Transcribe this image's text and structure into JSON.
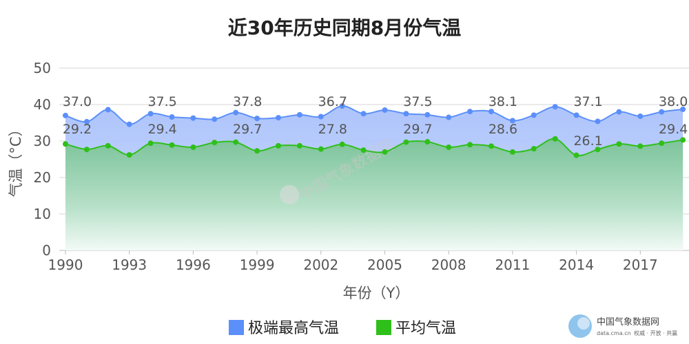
{
  "chart_data": {
    "type": "area",
    "title": "近30年历史同期8月份气温",
    "xlabel": "年份（Y）",
    "ylabel": "气温（°C）",
    "ylim": [
      0,
      50
    ],
    "yticks": [
      0,
      10,
      20,
      30,
      40,
      50
    ],
    "xticks": [
      1990,
      1993,
      1996,
      1999,
      2002,
      2005,
      2008,
      2011,
      2014,
      2017
    ],
    "x": [
      1990,
      1991,
      1992,
      1993,
      1994,
      1995,
      1996,
      1997,
      1998,
      1999,
      2000,
      2001,
      2002,
      2003,
      2004,
      2005,
      2006,
      2007,
      2008,
      2009,
      2010,
      2011,
      2012,
      2013,
      2014,
      2015,
      2016,
      2017,
      2018,
      2019
    ],
    "grid": true,
    "legend_position": "bottom",
    "series": [
      {
        "name": "极端最高气温",
        "color": "#5b8ff9",
        "fill": "#b9cdfb",
        "values": [
          37.0,
          35.3,
          38.6,
          34.6,
          37.5,
          36.6,
          36.3,
          36.0,
          37.8,
          36.2,
          36.4,
          37.2,
          36.7,
          39.6,
          37.5,
          38.5,
          37.5,
          37.2,
          36.5,
          38.1,
          38.1,
          35.6,
          37.1,
          39.4,
          37.1,
          35.4,
          38.0,
          36.8,
          38.0,
          38.7
        ]
      },
      {
        "name": "平均气温",
        "color": "#2fbf1a",
        "fill": "#8ecda8",
        "values": [
          29.2,
          27.7,
          28.7,
          26.2,
          29.4,
          28.9,
          28.3,
          29.6,
          29.7,
          27.3,
          28.7,
          28.7,
          27.8,
          29.1,
          27.5,
          27.0,
          29.7,
          29.8,
          28.3,
          29.0,
          28.6,
          27.0,
          27.9,
          30.6,
          26.1,
          27.7,
          29.2,
          28.6,
          29.4,
          30.3
        ]
      }
    ],
    "data_labels": {
      "highs": [
        {
          "year": 1990,
          "value": "37.0"
        },
        {
          "year": 1994,
          "value": "37.5"
        },
        {
          "year": 1998,
          "value": "37.8"
        },
        {
          "year": 2002,
          "value": "36.7"
        },
        {
          "year": 2006,
          "value": "37.5"
        },
        {
          "year": 2010,
          "value": "38.1"
        },
        {
          "year": 2014,
          "value": "37.1"
        },
        {
          "year": 2018,
          "value": "38.0"
        }
      ],
      "avgs": [
        {
          "year": 1990,
          "value": "29.2"
        },
        {
          "year": 1994,
          "value": "29.4"
        },
        {
          "year": 1998,
          "value": "29.7"
        },
        {
          "year": 2002,
          "value": "27.8"
        },
        {
          "year": 2006,
          "value": "29.7"
        },
        {
          "year": 2010,
          "value": "28.6"
        },
        {
          "year": 2014,
          "value": "26.1"
        },
        {
          "year": 2018,
          "value": "29.4"
        }
      ]
    }
  },
  "watermark": "中国气象数据网",
  "brand": {
    "name": "中国气象数据网",
    "url": "data.cma.cn",
    "tagline": "权威 · 开放 · 共赢"
  }
}
